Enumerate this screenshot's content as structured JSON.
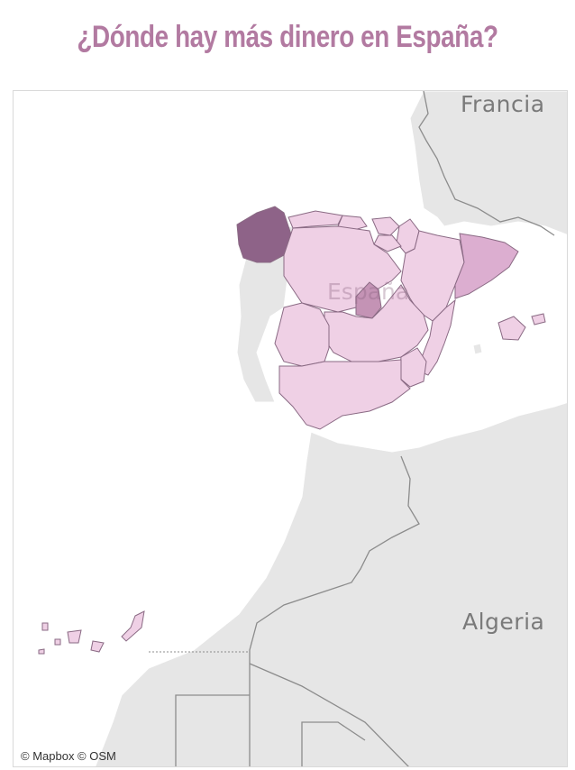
{
  "title": "¿Dónde hay más dinero en España?",
  "map": {
    "labels": {
      "francia": "Francia",
      "espana": "España",
      "algeria": "Algeria"
    },
    "attribution": "© Mapbox © OSM",
    "colors": {
      "title": "#b27aa1",
      "land": "#e6e6e6",
      "sea": "#ffffff",
      "region_low": "#efd0e5",
      "region_mid": "#dcaed0",
      "region_high": "#c493b5",
      "region_top": "#8e6388",
      "border": "#8a6a84"
    }
  }
}
